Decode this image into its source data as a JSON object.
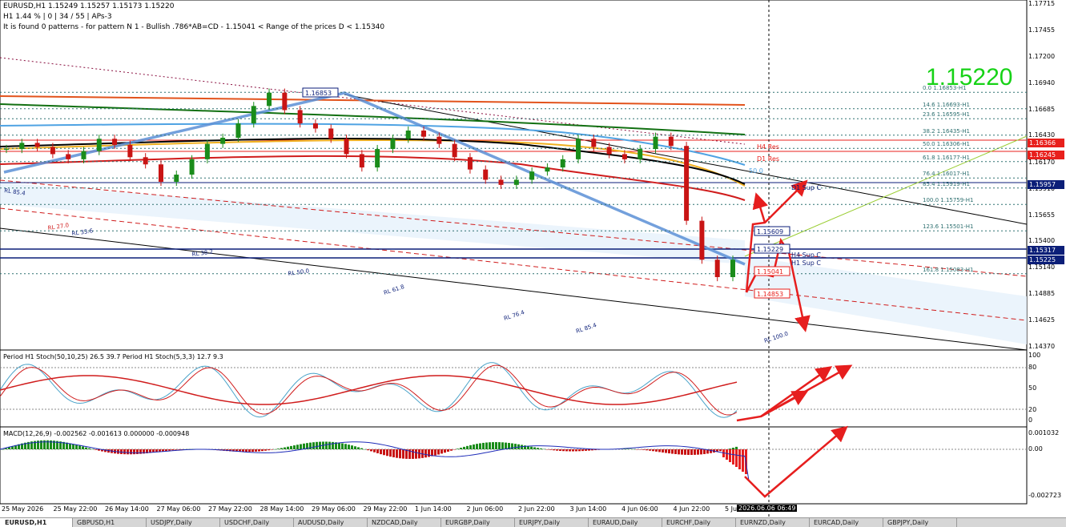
{
  "header": {
    "symbol_line": "EURUSD,H1  1.15249 1.15257 1.15173 1.15220",
    "stats_line": "H1  1.44 % | 0 | 34 / 55 | APs-3",
    "pattern_line": "It is found 0 patterns  -  for pattern N 1 - Bullish .786*AB=CD  - 1.15041 < Range of the prices D < 1.15340"
  },
  "big_price": "1.15220",
  "price_axis": {
    "labels": [
      "1.17715",
      "1.17455",
      "1.17200",
      "1.16940",
      "1.16685",
      "1.16430",
      "1.16170",
      "1.15910",
      "1.15655",
      "1.15400",
      "1.15140",
      "1.14885",
      "1.14625",
      "1.14370"
    ],
    "tags": [
      {
        "label": "1.16366",
        "value": 1.16366,
        "color": "#e8201c"
      },
      {
        "label": "1.16245",
        "value": 1.16245,
        "color": "#e8201c"
      },
      {
        "label": "1.15957",
        "value": 1.15957,
        "color": "#0b1e78"
      },
      {
        "label": "1.15317",
        "value": 1.15317,
        "color": "#0b1e78"
      },
      {
        "label": "1.15225",
        "value": 1.15225,
        "color": "#0b1e78"
      }
    ]
  },
  "fib_levels": [
    {
      "label": "0.0  1.16853-H1",
      "value": 1.16853
    },
    {
      "label": "14.6  1.16693-H1",
      "value": 1.16693
    },
    {
      "label": "23.6  1.16595-H1",
      "value": 1.16595
    },
    {
      "label": "38.2  1.16435-H1",
      "value": 1.16435
    },
    {
      "label": "50.0  1.16306-H1",
      "value": 1.16306
    },
    {
      "label": "61.8  1.16177-H1",
      "value": 1.16177
    },
    {
      "label": "76.4  1.16017-H1",
      "value": 1.16017
    },
    {
      "label": "85.4  1.15919-H1",
      "value": 1.15919
    },
    {
      "label": "100.0  1.15759-H1",
      "value": 1.15759
    },
    {
      "label": "123.6  1.15501-H1",
      "value": 1.15501
    },
    {
      "label": "161.8  1.15083-H1",
      "value": 1.15083
    }
  ],
  "chart_labels": {
    "h4_res": "H4 Res",
    "d1_res": "D1 Res",
    "d1_sup": "D1 Sup C",
    "h4_sup": "H4 Sup C",
    "h1_sup": "H1 Sup C",
    "high_box": "1.16853",
    "box_1": "1.15609",
    "box_2": "1.15229",
    "box_3": "1.15041",
    "box_4": "1.14853",
    "pct_label": "50.0"
  },
  "rl_labels": [
    "RL 27.0",
    "RL 33.6",
    "RL 38.2",
    "RL 50.0",
    "RL 61.8",
    "RL 76.4",
    "RL 85.4",
    "RL 100.0",
    "RL 85.4"
  ],
  "stoch": {
    "title": "Period H1 Stoch(50,10,25) 26.5 39.7  Period H1 Stoch(5,3,3) 12.7 9.3",
    "axis": [
      "100",
      "80",
      "50",
      "20",
      "0"
    ]
  },
  "macd": {
    "title": "MACD(12,26,9) -0.002562 -0.001613 0.000000 -0.000948",
    "axis": [
      "0.001032",
      "0.00",
      "-0.002723"
    ]
  },
  "time_axis": [
    "25 May 2026",
    "25 May 22:00",
    "26 May 14:00",
    "27 May 06:00",
    "27 May 22:00",
    "28 May 14:00",
    "29 May 06:00",
    "29 May 22:00",
    "1 Jun 14:00",
    "2 Jun 06:00",
    "2 Jun 22:00",
    "3 Jun 14:00",
    "4 Jun 06:00",
    "4 Jun 22:00",
    "5 Jun"
  ],
  "time_cursor": "2026.06.06 06:49",
  "tabs": [
    "EURUSD,H1",
    "GBPUSD,H1",
    "USDJPY,Daily",
    "USDCHF,Daily",
    "AUDUSD,Daily",
    "NZDCAD,Daily",
    "EURGBP,Daily",
    "EURJPY,Daily",
    "EURAUD,Daily",
    "EURCHF,Daily",
    "EURNZD,Daily",
    "EURCAD,Daily",
    "GBPJPY,Daily"
  ],
  "colors": {
    "bull": "#1a8c1a",
    "bear": "#c81414",
    "up_line": "#5b8fd6",
    "arrow": "#e61e1e"
  },
  "chart_data": {
    "type": "line",
    "title": "EURUSD,H1",
    "ylim": [
      1.1437,
      1.17715
    ],
    "series": [
      {
        "name": "EURUSD,H1",
        "values": [
          1.163,
          1.1636,
          1.1632,
          1.1625,
          1.162,
          1.1628,
          1.164,
          1.1634,
          1.1622,
          1.1615,
          1.1598,
          1.1605,
          1.162,
          1.1635,
          1.1641,
          1.1655,
          1.1672,
          1.1685,
          1.1668,
          1.1655,
          1.165,
          1.164,
          1.1625,
          1.1612,
          1.163,
          1.164,
          1.1648,
          1.1642,
          1.1635,
          1.1622,
          1.161,
          1.16,
          1.1595,
          1.16,
          1.1608,
          1.1612,
          1.162,
          1.164,
          1.1632,
          1.1625,
          1.162,
          1.163,
          1.1642,
          1.1633,
          1.156,
          1.1522,
          1.1505,
          1.1522
        ]
      }
    ],
    "stoch_levels": [
      80,
      50,
      20
    ]
  }
}
